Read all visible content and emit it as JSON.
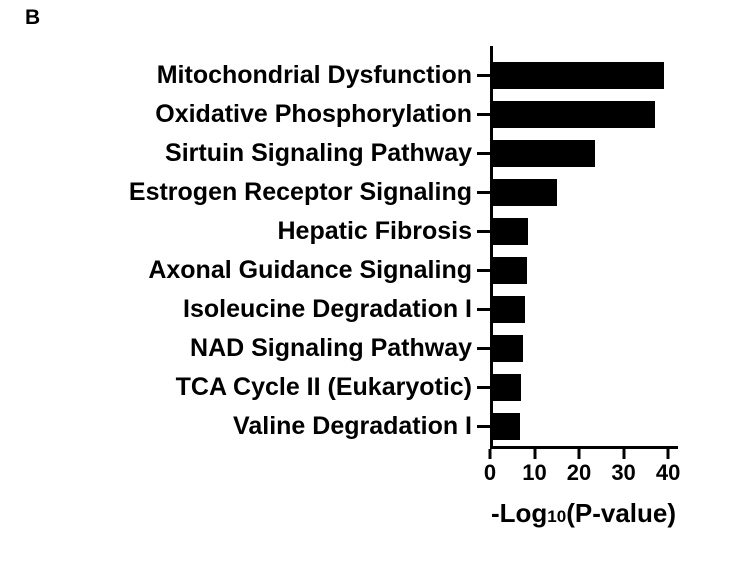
{
  "panel_label": "B",
  "chart_data": {
    "type": "bar",
    "orientation": "horizontal",
    "title": "",
    "categories": [
      "Mitochondrial Dysfunction",
      "Oxidative Phosphorylation",
      "Sirtuin Signaling Pathway",
      "Estrogen Receptor Signaling",
      "Hepatic Fibrosis",
      "Axonal Guidance Signaling",
      "Isoleucine Degradation I",
      "NAD Signaling Pathway",
      "TCA Cycle II (Eukaryotic)",
      "Valine Degradation I"
    ],
    "values": [
      39,
      37,
      23.5,
      15,
      8.5,
      8.3,
      7.8,
      7.5,
      7,
      6.8
    ],
    "xlabel": "-Log10 (P-value)",
    "xlabel_parts": {
      "prefix": "-Log",
      "subscript": "10",
      "suffix": " (P-value)"
    },
    "x_ticks": [
      0,
      10,
      20,
      30,
      40
    ],
    "xlim": [
      0,
      42
    ],
    "grid": false,
    "legend": "none",
    "bar_color": "#000000",
    "background": "#ffffff"
  }
}
